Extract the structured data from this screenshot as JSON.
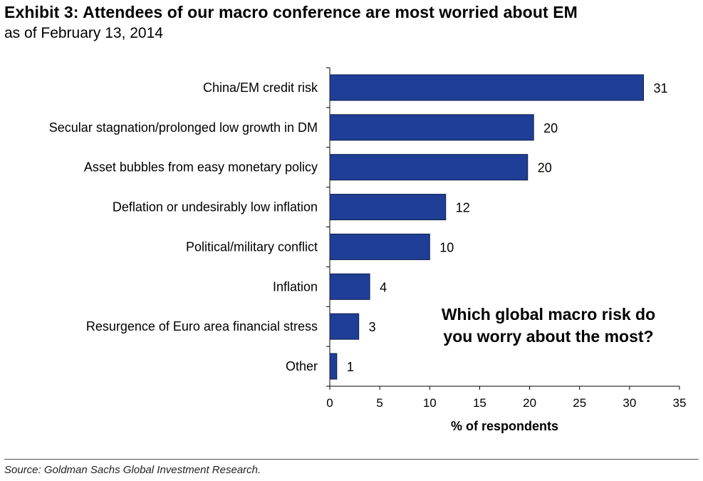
{
  "header": {
    "title": "Exhibit 3: Attendees of our macro conference are most worried about EM",
    "subtitle": "as of February 13, 2014"
  },
  "footer": {
    "source": "Source: Goldman Sachs Global Investment Research."
  },
  "colors": {
    "bar_fill": "#1f3e96",
    "bar_stroke": "#0d1d4a"
  },
  "chart_data": {
    "type": "bar",
    "orientation": "horizontal",
    "categories": [
      "China/EM credit risk",
      "Secular stagnation/prolonged low growth in DM",
      "Asset bubbles from easy monetary policy",
      "Deflation or undesirably low inflation",
      "Political/military conflict",
      "Inflation",
      "Resurgence of Euro area financial stress",
      "Other"
    ],
    "values": [
      31.4,
      20.4,
      19.8,
      11.6,
      10.0,
      4.0,
      2.9,
      0.7
    ],
    "data_labels": [
      "31",
      "20",
      "20",
      "12",
      "10",
      "4",
      "3",
      "1"
    ],
    "title": "",
    "xlabel": "% of respondents",
    "ylabel": "",
    "xlim": [
      0,
      35
    ],
    "xticks": [
      0,
      5,
      10,
      15,
      20,
      25,
      30,
      35
    ],
    "annotation": [
      "Which global macro risk do",
      "you worry about the most?"
    ],
    "grid": false,
    "legend": "none"
  }
}
